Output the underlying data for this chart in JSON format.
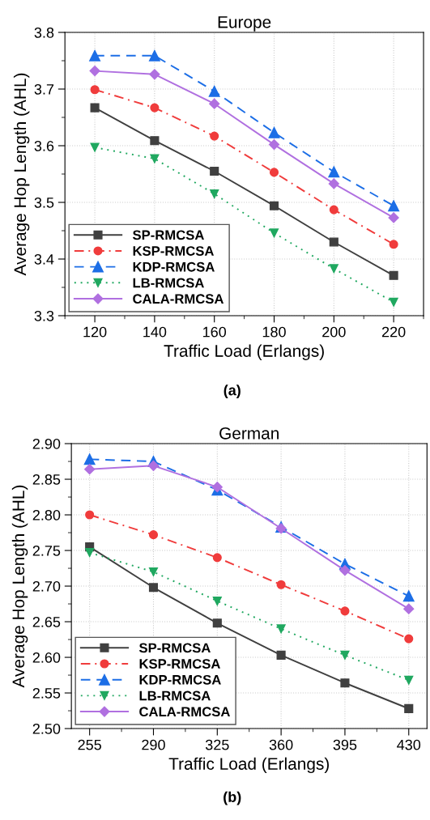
{
  "chart_data": [
    {
      "type": "line",
      "title": "Europe",
      "xlabel": "Traffic Load (Erlangs)",
      "ylabel": "Average Hop Length (AHL)",
      "x": [
        120,
        140,
        160,
        180,
        200,
        220
      ],
      "xlim": [
        110,
        230
      ],
      "xticks": [
        120,
        140,
        160,
        180,
        200,
        220
      ],
      "ylim": [
        3.3,
        3.8
      ],
      "yticks": [
        {
          "value": 3.3,
          "label": "3.3"
        },
        {
          "value": 3.4,
          "label": "3.4"
        },
        {
          "value": 3.5,
          "label": "3.5"
        },
        {
          "value": 3.6,
          "label": "3.6"
        },
        {
          "value": 3.7,
          "label": "3.7"
        },
        {
          "value": 3.8,
          "label": "3.8"
        }
      ],
      "grid": true,
      "legend": "bottom left",
      "annotations": [
        "(a)"
      ],
      "series": [
        {
          "name": "SP-RMCSA",
          "color": "#404040",
          "marker": "square",
          "line_style": "solid",
          "values": [
            3.667,
            3.609,
            3.555,
            3.494,
            3.43,
            3.371
          ]
        },
        {
          "name": "KSP-RMCSA",
          "color": "#f03c3c",
          "marker": "circle",
          "line_style": "dashdot",
          "values": [
            3.699,
            3.667,
            3.617,
            3.553,
            3.487,
            3.426
          ]
        },
        {
          "name": "KDP-RMCSA",
          "color": "#1c6ee6",
          "marker": "triangle",
          "line_style": "dashed",
          "values": [
            3.759,
            3.759,
            3.696,
            3.623,
            3.554,
            3.494
          ]
        },
        {
          "name": "LB-RMCSA",
          "color": "#20a860",
          "marker": "triangle_down",
          "line_style": "dotted",
          "values": [
            3.597,
            3.577,
            3.515,
            3.446,
            3.383,
            3.324
          ]
        },
        {
          "name": "CALA-RMCSA",
          "color": "#b070e0",
          "marker": "diamond",
          "line_style": "solid",
          "values": [
            3.732,
            3.726,
            3.674,
            3.602,
            3.533,
            3.473
          ]
        }
      ]
    },
    {
      "type": "line",
      "title": "German",
      "xlabel": "Traffic Load (Erlangs)",
      "ylabel": "Average Hop Length (AHL)",
      "x": [
        255,
        290,
        325,
        360,
        395,
        430
      ],
      "xlim": [
        245,
        440
      ],
      "xticks": [
        255,
        290,
        325,
        360,
        395,
        430
      ],
      "ylim": [
        2.5,
        2.9
      ],
      "yticks": [
        {
          "value": 2.5,
          "label": "2.50"
        },
        {
          "value": 2.55,
          "label": "2.55"
        },
        {
          "value": 2.6,
          "label": "2.60"
        },
        {
          "value": 2.65,
          "label": "2.65"
        },
        {
          "value": 2.7,
          "label": "2.70"
        },
        {
          "value": 2.75,
          "label": "2.75"
        },
        {
          "value": 2.8,
          "label": "2.80"
        },
        {
          "value": 2.85,
          "label": "2.85"
        },
        {
          "value": 2.9,
          "label": "2.90"
        }
      ],
      "grid": true,
      "legend": "bottom left",
      "annotations": [
        "(b)"
      ],
      "series": [
        {
          "name": "SP-RMCSA",
          "color": "#404040",
          "marker": "square",
          "line_style": "solid",
          "values": [
            2.755,
            2.698,
            2.648,
            2.603,
            2.564,
            2.528
          ]
        },
        {
          "name": "KSP-RMCSA",
          "color": "#f03c3c",
          "marker": "circle",
          "line_style": "dashdot",
          "values": [
            2.8,
            2.772,
            2.74,
            2.702,
            2.665,
            2.626
          ]
        },
        {
          "name": "KDP-RMCSA",
          "color": "#1c6ee6",
          "marker": "triangle",
          "line_style": "dashed",
          "values": [
            2.878,
            2.875,
            2.835,
            2.783,
            2.731,
            2.686
          ]
        },
        {
          "name": "LB-RMCSA",
          "color": "#20a860",
          "marker": "triangle_down",
          "line_style": "dotted",
          "values": [
            2.747,
            2.72,
            2.679,
            2.64,
            2.603,
            2.568
          ]
        },
        {
          "name": "CALA-RMCSA",
          "color": "#b070e0",
          "marker": "diamond",
          "line_style": "solid",
          "values": [
            2.864,
            2.869,
            2.839,
            2.781,
            2.722,
            2.668
          ]
        }
      ]
    }
  ]
}
